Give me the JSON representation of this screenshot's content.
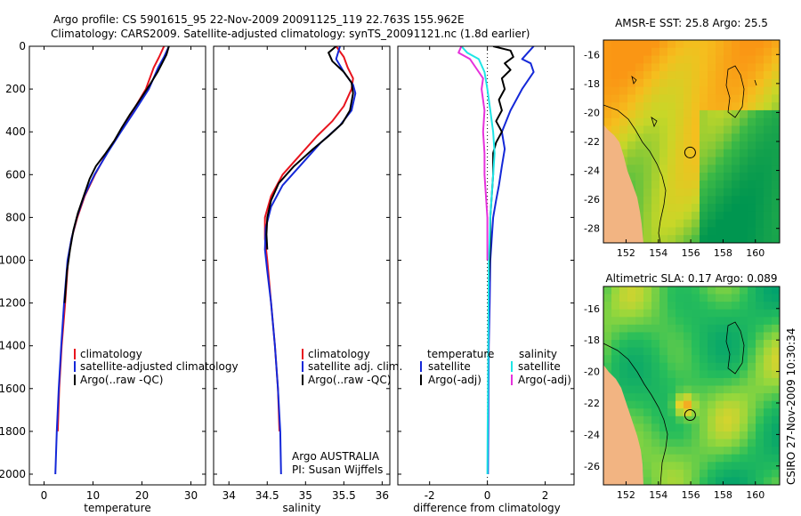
{
  "title_line1": "Argo profile: CS 5901615_95 22-Nov-2009 20091125_119 22.763S 155.962E",
  "title_line2": "Climatology: CARS2009. Satellite-adjusted climatology: synTS_20091121.nc (1.8d earlier)",
  "credit": "CSIRO 27-Nov-2009 10:30:34",
  "colors": {
    "red": "#e8141e",
    "blue": "#1428d8",
    "black": "#000000",
    "cyan": "#1ee6e6",
    "magenta": "#e632dc",
    "land": "#f2b482"
  },
  "chart_data": [
    {
      "type": "line",
      "id": "temperature",
      "xlabel": "temperature",
      "ylabel": "",
      "xlim": [
        -3,
        33
      ],
      "ylim": [
        0,
        2050
      ],
      "y_inverted": true,
      "xticks": [
        0,
        10,
        20,
        30
      ],
      "yticks": [
        0,
        200,
        400,
        600,
        800,
        1000,
        1200,
        1400,
        1600,
        1800,
        2000
      ],
      "series": [
        {
          "name": "climatology",
          "color": "red",
          "points": [
            [
              24.5,
              0
            ],
            [
              23.5,
              50
            ],
            [
              22.4,
              100
            ],
            [
              20.8,
              200
            ],
            [
              18.2,
              300
            ],
            [
              15.5,
              400
            ],
            [
              12.8,
              500
            ],
            [
              10.4,
              600
            ],
            [
              8.3,
              700
            ],
            [
              6.8,
              800
            ],
            [
              5.6,
              900
            ],
            [
              4.9,
              1000
            ],
            [
              4.3,
              1200
            ],
            [
              3.6,
              1400
            ],
            [
              3.1,
              1600
            ],
            [
              2.8,
              1800
            ]
          ]
        },
        {
          "name": "satellite-adjusted climatology",
          "color": "blue",
          "points": [
            [
              25.5,
              0
            ],
            [
              24.5,
              50
            ],
            [
              23.3,
              100
            ],
            [
              21.4,
              200
            ],
            [
              18.6,
              300
            ],
            [
              15.7,
              400
            ],
            [
              12.9,
              500
            ],
            [
              10.3,
              600
            ],
            [
              8.2,
              700
            ],
            [
              6.7,
              800
            ],
            [
              5.6,
              900
            ],
            [
              4.8,
              1000
            ],
            [
              4.1,
              1200
            ],
            [
              3.5,
              1400
            ],
            [
              3.0,
              1600
            ],
            [
              2.6,
              1800
            ],
            [
              2.3,
              2000
            ]
          ]
        },
        {
          "name": "Argo(..raw -QC)",
          "color": "black",
          "points": [
            [
              25.5,
              0
            ],
            [
              25,
              40
            ],
            [
              24.1,
              80
            ],
            [
              23.2,
              120
            ],
            [
              21.6,
              180
            ],
            [
              19.3,
              260
            ],
            [
              17.5,
              320
            ],
            [
              15.9,
              380
            ],
            [
              14.4,
              440
            ],
            [
              12.6,
              500
            ],
            [
              10.6,
              560
            ],
            [
              9.3,
              620
            ],
            [
              8.1,
              700
            ],
            [
              6.9,
              780
            ],
            [
              6.0,
              860
            ],
            [
              5.3,
              950
            ],
            [
              4.7,
              1050
            ],
            [
              4.2,
              1200
            ]
          ]
        }
      ]
    },
    {
      "type": "line",
      "id": "salinity",
      "xlabel": "salinity",
      "ylabel": "",
      "xlim": [
        33.8,
        36.1
      ],
      "ylim": [
        0,
        2050
      ],
      "y_inverted": true,
      "xticks": [
        34,
        34.5,
        35,
        35.5,
        36
      ],
      "series": [
        {
          "name": "climatology",
          "color": "red",
          "points": [
            [
              35.4,
              0
            ],
            [
              35.5,
              50
            ],
            [
              35.55,
              100
            ],
            [
              35.62,
              150
            ],
            [
              35.6,
              200
            ],
            [
              35.5,
              280
            ],
            [
              35.35,
              350
            ],
            [
              35.15,
              420
            ],
            [
              34.95,
              500
            ],
            [
              34.7,
              600
            ],
            [
              34.55,
              700
            ],
            [
              34.47,
              800
            ],
            [
              34.47,
              900
            ],
            [
              34.5,
              1000
            ],
            [
              34.55,
              1200
            ],
            [
              34.6,
              1400
            ],
            [
              34.64,
              1600
            ],
            [
              34.66,
              1800
            ]
          ]
        },
        {
          "name": "satellite adj. clim.",
          "color": "blue",
          "points": [
            [
              35.45,
              0
            ],
            [
              35.4,
              60
            ],
            [
              35.5,
              120
            ],
            [
              35.62,
              180
            ],
            [
              35.65,
              220
            ],
            [
              35.6,
              300
            ],
            [
              35.45,
              370
            ],
            [
              35.2,
              450
            ],
            [
              34.95,
              550
            ],
            [
              34.7,
              650
            ],
            [
              34.55,
              750
            ],
            [
              34.48,
              850
            ],
            [
              34.47,
              950
            ],
            [
              34.5,
              1050
            ],
            [
              34.55,
              1200
            ],
            [
              34.6,
              1400
            ],
            [
              34.64,
              1600
            ],
            [
              34.67,
              1800
            ],
            [
              34.68,
              2000
            ]
          ]
        },
        {
          "name": "Argo(..raw -QC)",
          "color": "black",
          "points": [
            [
              35.4,
              0
            ],
            [
              35.3,
              30
            ],
            [
              35.35,
              70
            ],
            [
              35.5,
              120
            ],
            [
              35.6,
              170
            ],
            [
              35.62,
              220
            ],
            [
              35.58,
              300
            ],
            [
              35.48,
              360
            ],
            [
              35.3,
              420
            ],
            [
              35.1,
              480
            ],
            [
              34.85,
              560
            ],
            [
              34.65,
              640
            ],
            [
              34.55,
              720
            ],
            [
              34.5,
              800
            ],
            [
              34.49,
              880
            ],
            [
              34.5,
              950
            ]
          ]
        }
      ],
      "annotation_lines": [
        "Argo AUSTRALIA",
        "PI: Susan Wijffels"
      ]
    },
    {
      "type": "line",
      "id": "difference",
      "xlabel": "difference from climatology",
      "ylabel": "",
      "xlim": [
        -3.1,
        3.0
      ],
      "ylim": [
        0,
        2050
      ],
      "y_inverted": true,
      "xticks": [
        -2,
        0,
        2
      ],
      "zero_line": true,
      "series": [
        {
          "name": "temperature satellite",
          "color": "blue",
          "points": [
            [
              1.6,
              0
            ],
            [
              1.4,
              30
            ],
            [
              1.2,
              60
            ],
            [
              1.5,
              80
            ],
            [
              1.6,
              120
            ],
            [
              1.2,
              200
            ],
            [
              0.8,
              300
            ],
            [
              0.5,
              400
            ],
            [
              0.6,
              480
            ],
            [
              0.5,
              560
            ],
            [
              0.4,
              650
            ],
            [
              0.3,
              720
            ],
            [
              0.2,
              800
            ],
            [
              0.15,
              900
            ],
            [
              0.1,
              1000
            ],
            [
              0.08,
              1200
            ],
            [
              0.05,
              1400
            ],
            [
              0.04,
              1600
            ],
            [
              0.03,
              1800
            ],
            [
              0.02,
              2000
            ]
          ]
        },
        {
          "name": "temperature Argo(-adj)",
          "color": "black",
          "points": [
            [
              0.2,
              0
            ],
            [
              0.8,
              20
            ],
            [
              0.9,
              50
            ],
            [
              0.6,
              80
            ],
            [
              0.8,
              110
            ],
            [
              0.5,
              150
            ],
            [
              0.6,
              200
            ],
            [
              0.4,
              250
            ],
            [
              0.5,
              300
            ],
            [
              0.3,
              350
            ],
            [
              0.5,
              400
            ],
            [
              0.3,
              450
            ],
            [
              0.2,
              500
            ],
            [
              0.2,
              600
            ],
            [
              0.15,
              700
            ],
            [
              0.1,
              800
            ],
            [
              0.1,
              900
            ],
            [
              0.08,
              1000
            ],
            [
              0.05,
              1100
            ]
          ]
        },
        {
          "name": "salinity satellite",
          "color": "cyan",
          "points": [
            [
              -0.9,
              0
            ],
            [
              -0.7,
              30
            ],
            [
              -0.3,
              60
            ],
            [
              -0.1,
              120
            ],
            [
              0.0,
              200
            ],
            [
              0.1,
              300
            ],
            [
              0.2,
              400
            ],
            [
              0.25,
              500
            ],
            [
              0.2,
              600
            ],
            [
              0.15,
              700
            ],
            [
              0.1,
              800
            ],
            [
              0.08,
              900
            ],
            [
              0.05,
              1000
            ],
            [
              0.04,
              1200
            ],
            [
              0.03,
              1400
            ],
            [
              0.02,
              1600
            ],
            [
              0.01,
              1800
            ],
            [
              0.0,
              2000
            ]
          ]
        },
        {
          "name": "salinity Argo(-adj)",
          "color": "magenta",
          "points": [
            [
              -0.9,
              0
            ],
            [
              -1.0,
              30
            ],
            [
              -0.6,
              60
            ],
            [
              -0.4,
              100
            ],
            [
              -0.15,
              150
            ],
            [
              -0.2,
              200
            ],
            [
              -0.1,
              300
            ],
            [
              -0.15,
              400
            ],
            [
              -0.1,
              500
            ],
            [
              -0.1,
              600
            ],
            [
              -0.05,
              700
            ],
            [
              0.0,
              800
            ],
            [
              0.0,
              900
            ],
            [
              0.0,
              1000
            ]
          ]
        }
      ],
      "legend_temperature": {
        "header": "temperature",
        "satellite": "satellite",
        "argo": "Argo(-adj)"
      },
      "legend_salinity": {
        "header": "salinity",
        "satellite": "satellite",
        "argo": "Argo(-adj)"
      }
    },
    {
      "type": "heatmap",
      "id": "sst",
      "title": "AMSR-E SST: 25.8 Argo: 25.5",
      "xlim": [
        150.6,
        161.5
      ],
      "ylim": [
        -29,
        -15
      ],
      "xticks": [
        152,
        154,
        156,
        158,
        160
      ],
      "yticks": [
        -16,
        -18,
        -20,
        -22,
        -24,
        -26,
        -28
      ],
      "argo_position": [
        155.962,
        -22.763
      ]
    },
    {
      "type": "heatmap",
      "id": "sla",
      "title": "Altimetric SLA: 0.17 Argo: 0.089",
      "xlim": [
        150.6,
        161.5
      ],
      "ylim": [
        -27.2,
        -14.6
      ],
      "xticks": [
        152,
        154,
        156,
        158,
        160
      ],
      "yticks": [
        -16,
        -18,
        -20,
        -22,
        -24,
        -26
      ],
      "argo_position": [
        155.962,
        -22.763
      ]
    }
  ]
}
